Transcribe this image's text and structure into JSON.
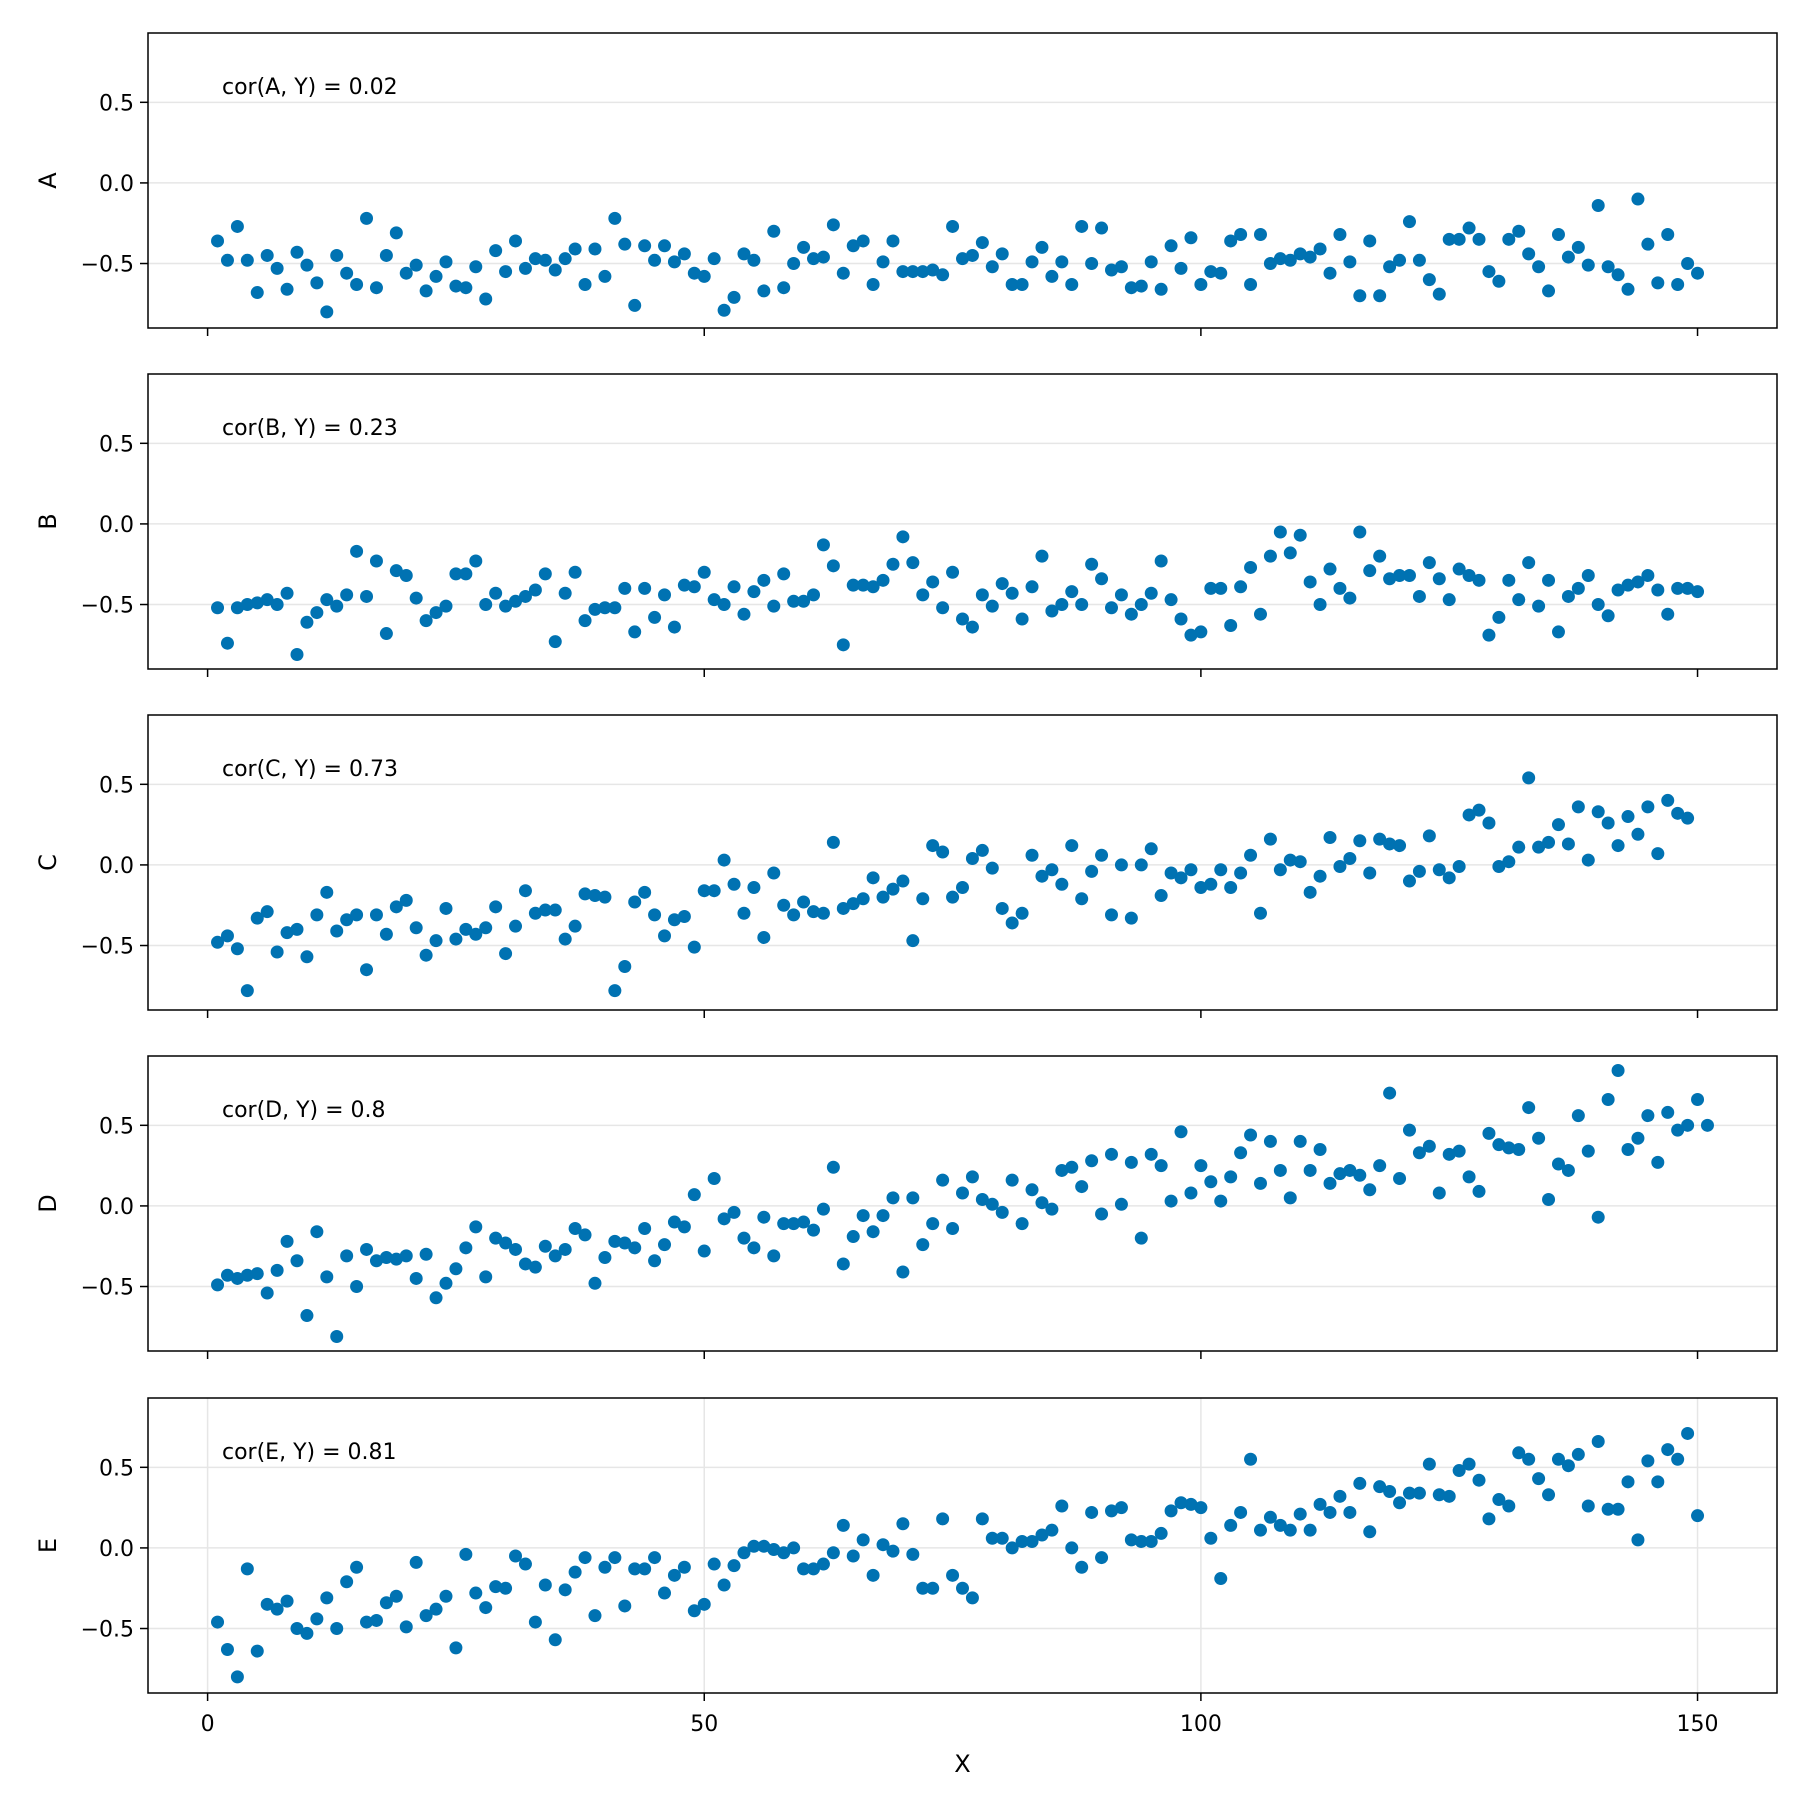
{
  "chart_data": {
    "type": "scatter",
    "layout": "stacked-panels",
    "xlabel": "X",
    "xlim": [
      -6,
      158
    ],
    "xticks": [
      0,
      50,
      100,
      150
    ],
    "xtick_labels": [
      "0",
      "50",
      "100",
      "150"
    ],
    "ylim": [
      -0.9,
      0.93
    ],
    "yticks": [
      -0.5,
      0.0,
      0.5
    ],
    "ytick_labels": [
      "−0.5",
      "0.0",
      "0.5"
    ],
    "grid": true,
    "marker_color": "#0072b2",
    "gridline_color": "#e6e6e6",
    "panels": [
      {
        "ylabel": "A",
        "annotation": "cor(A, Y) = 0.02",
        "x_start": 1,
        "y": [
          -0.36,
          -0.48,
          -0.27,
          -0.48,
          -0.68,
          -0.45,
          -0.53,
          -0.66,
          -0.43,
          -0.51,
          -0.62,
          -0.8,
          -0.45,
          -0.56,
          -0.63,
          -0.22,
          -0.65,
          -0.45,
          -0.31,
          -0.56,
          -0.51,
          -0.67,
          -0.58,
          -0.49,
          -0.64,
          -0.65,
          -0.52,
          -0.72,
          -0.42,
          -0.55,
          -0.36,
          -0.53,
          -0.47,
          -0.48,
          -0.54,
          -0.47,
          -0.41,
          -0.63,
          -0.41,
          -0.58,
          -0.22,
          -0.38,
          -0.76,
          -0.39,
          -0.48,
          -0.39,
          -0.49,
          -0.44,
          -0.56,
          -0.58,
          -0.47,
          -0.79,
          -0.71,
          -0.44,
          -0.48,
          -0.67,
          -0.3,
          -0.65,
          -0.5,
          -0.4,
          -0.47,
          -0.46,
          -0.26,
          -0.56,
          -0.39,
          -0.36,
          -0.63,
          -0.49,
          -0.36,
          -0.55,
          -0.55,
          -0.55,
          -0.54,
          -0.57,
          -0.27,
          -0.47,
          -0.45,
          -0.37,
          -0.52,
          -0.44,
          -0.63,
          -0.63,
          -0.49,
          -0.4,
          -0.58,
          -0.49,
          -0.63,
          -0.27,
          -0.5,
          -0.28,
          -0.54,
          -0.52,
          -0.65,
          -0.64,
          -0.49,
          -0.66,
          -0.39,
          -0.53,
          -0.34,
          -0.63,
          -0.55,
          -0.56,
          -0.36,
          -0.32,
          -0.63,
          -0.32,
          -0.5,
          -0.47,
          -0.48,
          -0.44,
          -0.46,
          -0.41,
          -0.56,
          -0.32,
          -0.49,
          -0.7,
          -0.36,
          -0.7,
          -0.52,
          -0.48,
          -0.24,
          -0.48,
          -0.6,
          -0.69,
          -0.35,
          -0.35,
          -0.28,
          -0.35,
          -0.55,
          -0.61,
          -0.35,
          -0.3,
          -0.44,
          -0.52,
          -0.67,
          -0.32,
          -0.46,
          -0.4,
          -0.51,
          -0.14,
          -0.52,
          -0.57,
          -0.66,
          -0.1,
          -0.38,
          -0.62,
          -0.32,
          -0.63,
          -0.5,
          -0.56
        ]
      },
      {
        "ylabel": "B",
        "annotation": "cor(B, Y) = 0.23",
        "x_start": 1,
        "y": [
          -0.52,
          -0.74,
          -0.52,
          -0.5,
          -0.49,
          -0.47,
          -0.5,
          -0.43,
          -0.81,
          -0.61,
          -0.55,
          -0.47,
          -0.51,
          -0.44,
          -0.17,
          -0.45,
          -0.23,
          -0.68,
          -0.29,
          -0.32,
          -0.46,
          -0.6,
          -0.55,
          -0.51,
          -0.31,
          -0.31,
          -0.23,
          -0.5,
          -0.43,
          -0.51,
          -0.48,
          -0.45,
          -0.41,
          -0.31,
          -0.73,
          -0.43,
          -0.3,
          -0.6,
          -0.53,
          -0.52,
          -0.52,
          -0.4,
          -0.67,
          -0.4,
          -0.58,
          -0.44,
          -0.64,
          -0.38,
          -0.39,
          -0.3,
          -0.47,
          -0.5,
          -0.39,
          -0.56,
          -0.42,
          -0.35,
          -0.51,
          -0.31,
          -0.48,
          -0.48,
          -0.44,
          -0.13,
          -0.26,
          -0.75,
          -0.38,
          -0.38,
          -0.39,
          -0.35,
          -0.25,
          -0.08,
          -0.24,
          -0.44,
          -0.36,
          -0.52,
          -0.3,
          -0.59,
          -0.64,
          -0.44,
          -0.51,
          -0.37,
          -0.43,
          -0.59,
          -0.39,
          -0.2,
          -0.54,
          -0.5,
          -0.42,
          -0.5,
          -0.25,
          -0.34,
          -0.52,
          -0.44,
          -0.56,
          -0.5,
          -0.43,
          -0.23,
          -0.47,
          -0.59,
          -0.69,
          -0.67,
          -0.4,
          -0.4,
          -0.63,
          -0.39,
          -0.27,
          -0.56,
          -0.2,
          -0.05,
          -0.18,
          -0.07,
          -0.36,
          -0.5,
          -0.28,
          -0.4,
          -0.46,
          -0.05,
          -0.29,
          -0.2,
          -0.34,
          -0.32,
          -0.32,
          -0.45,
          -0.24,
          -0.34,
          -0.47,
          -0.28,
          -0.32,
          -0.35,
          -0.69,
          -0.58,
          -0.35,
          -0.47,
          -0.24,
          -0.51,
          -0.35,
          -0.67,
          -0.45,
          -0.4,
          -0.32,
          -0.5,
          -0.57,
          -0.41,
          -0.38,
          -0.36,
          -0.32,
          -0.41,
          -0.56,
          -0.4,
          -0.4,
          -0.42
        ]
      },
      {
        "ylabel": "C",
        "annotation": "cor(C, Y) = 0.73",
        "x_start": 1,
        "y": [
          -0.48,
          -0.44,
          -0.52,
          -0.78,
          -0.33,
          -0.29,
          -0.54,
          -0.42,
          -0.4,
          -0.57,
          -0.31,
          -0.17,
          -0.41,
          -0.34,
          -0.31,
          -0.65,
          -0.31,
          -0.43,
          -0.26,
          -0.22,
          -0.39,
          -0.56,
          -0.47,
          -0.27,
          -0.46,
          -0.4,
          -0.43,
          -0.39,
          -0.26,
          -0.55,
          -0.38,
          -0.16,
          -0.3,
          -0.28,
          -0.28,
          -0.46,
          -0.38,
          -0.18,
          -0.19,
          -0.2,
          -0.78,
          -0.63,
          -0.23,
          -0.17,
          -0.31,
          -0.44,
          -0.34,
          -0.32,
          -0.51,
          -0.16,
          -0.16,
          0.03,
          -0.12,
          -0.3,
          -0.14,
          -0.45,
          -0.05,
          -0.25,
          -0.31,
          -0.23,
          -0.29,
          -0.3,
          0.14,
          -0.27,
          -0.24,
          -0.21,
          -0.08,
          -0.2,
          -0.15,
          -0.1,
          -0.47,
          -0.21,
          0.12,
          0.08,
          -0.2,
          -0.14,
          0.04,
          0.09,
          -0.02,
          -0.27,
          -0.36,
          -0.3,
          0.06,
          -0.07,
          -0.03,
          -0.12,
          0.12,
          -0.21,
          -0.04,
          0.06,
          -0.31,
          0.0,
          -0.33,
          0.0,
          0.1,
          -0.19,
          -0.05,
          -0.08,
          -0.03,
          -0.14,
          -0.12,
          -0.03,
          -0.14,
          -0.05,
          0.06,
          -0.3,
          0.16,
          -0.03,
          0.03,
          0.02,
          -0.17,
          -0.07,
          0.17,
          -0.01,
          0.04,
          0.15,
          -0.05,
          0.16,
          0.13,
          0.12,
          -0.1,
          -0.04,
          0.18,
          -0.03,
          -0.08,
          -0.01,
          0.31,
          0.34,
          0.26,
          -0.01,
          0.02,
          0.11,
          0.54,
          0.11,
          0.14,
          0.25,
          0.13,
          0.36,
          0.03,
          0.33,
          0.26,
          0.12,
          0.3,
          0.19,
          0.36,
          0.07,
          0.4,
          0.32,
          0.29
        ]
      },
      {
        "ylabel": "D",
        "annotation": "cor(D, Y) = 0.8",
        "x_start": 1,
        "y": [
          -0.49,
          -0.43,
          -0.45,
          -0.43,
          -0.42,
          -0.54,
          -0.4,
          -0.22,
          -0.34,
          -0.68,
          -0.16,
          -0.44,
          -0.81,
          -0.31,
          -0.5,
          -0.27,
          -0.34,
          -0.32,
          -0.33,
          -0.31,
          -0.45,
          -0.3,
          -0.57,
          -0.48,
          -0.39,
          -0.26,
          -0.13,
          -0.44,
          -0.2,
          -0.23,
          -0.27,
          -0.36,
          -0.38,
          -0.25,
          -0.31,
          -0.27,
          -0.14,
          -0.18,
          -0.48,
          -0.32,
          -0.22,
          -0.23,
          -0.26,
          -0.14,
          -0.34,
          -0.24,
          -0.1,
          -0.13,
          0.07,
          -0.28,
          0.17,
          -0.08,
          -0.04,
          -0.2,
          -0.26,
          -0.07,
          -0.31,
          -0.11,
          -0.11,
          -0.1,
          -0.15,
          -0.02,
          0.24,
          -0.36,
          -0.19,
          -0.06,
          -0.16,
          -0.06,
          0.05,
          -0.41,
          0.05,
          -0.24,
          -0.11,
          0.16,
          -0.14,
          0.08,
          0.18,
          0.04,
          0.01,
          -0.04,
          0.16,
          -0.11,
          0.1,
          0.02,
          -0.02,
          0.22,
          0.24,
          0.12,
          0.28,
          -0.05,
          0.32,
          0.01,
          0.27,
          -0.2,
          0.32,
          0.25,
          0.03,
          0.46,
          0.08,
          0.25,
          0.15,
          0.03,
          0.18,
          0.33,
          0.44,
          0.14,
          0.4,
          0.22,
          0.05,
          0.4,
          0.22,
          0.35,
          0.14,
          0.2,
          0.22,
          0.19,
          0.1,
          0.25,
          0.7,
          0.17,
          0.47,
          0.33,
          0.37,
          0.08,
          0.32,
          0.34,
          0.18,
          0.09,
          0.45,
          0.38,
          0.36,
          0.35,
          0.61,
          0.42,
          0.04,
          0.26,
          0.22,
          0.56,
          0.34,
          -0.07,
          0.66,
          0.84,
          0.35,
          0.42,
          0.56,
          0.27,
          0.58,
          0.47,
          0.5,
          0.66,
          0.5
        ]
      },
      {
        "ylabel": "E",
        "annotation": "cor(E, Y) = 0.81",
        "x_start": 1,
        "y": [
          -0.46,
          -0.63,
          -0.8,
          -0.13,
          -0.64,
          -0.35,
          -0.38,
          -0.33,
          -0.5,
          -0.53,
          -0.44,
          -0.31,
          -0.5,
          -0.21,
          -0.12,
          -0.46,
          -0.45,
          -0.34,
          -0.3,
          -0.49,
          -0.09,
          -0.42,
          -0.38,
          -0.3,
          -0.62,
          -0.04,
          -0.28,
          -0.37,
          -0.24,
          -0.25,
          -0.05,
          -0.1,
          -0.46,
          -0.23,
          -0.57,
          -0.26,
          -0.15,
          -0.06,
          -0.42,
          -0.12,
          -0.06,
          -0.36,
          -0.13,
          -0.13,
          -0.06,
          -0.28,
          -0.17,
          -0.12,
          -0.39,
          -0.35,
          -0.1,
          -0.23,
          -0.11,
          -0.03,
          0.01,
          0.01,
          -0.01,
          -0.03,
          0.0,
          -0.13,
          -0.13,
          -0.1,
          -0.03,
          0.14,
          -0.05,
          0.05,
          -0.17,
          0.02,
          -0.02,
          0.15,
          -0.04,
          -0.25,
          -0.25,
          0.18,
          -0.17,
          -0.25,
          -0.31,
          0.18,
          0.06,
          0.06,
          0.0,
          0.04,
          0.04,
          0.08,
          0.11,
          0.26,
          0.0,
          -0.12,
          0.22,
          -0.06,
          0.23,
          0.25,
          0.05,
          0.04,
          0.04,
          0.09,
          0.23,
          0.28,
          0.27,
          0.25,
          0.06,
          -0.19,
          0.14,
          0.22,
          0.55,
          0.11,
          0.19,
          0.14,
          0.11,
          0.21,
          0.11,
          0.27,
          0.22,
          0.32,
          0.22,
          0.4,
          0.1,
          0.38,
          0.35,
          0.28,
          0.34,
          0.34,
          0.52,
          0.33,
          0.32,
          0.48,
          0.52,
          0.42,
          0.18,
          0.3,
          0.26,
          0.59,
          0.55,
          0.43,
          0.33,
          0.55,
          0.51,
          0.58,
          0.26,
          0.66,
          0.24,
          0.24,
          0.41,
          0.05,
          0.54,
          0.41,
          0.61,
          0.55,
          0.71,
          0.2
        ]
      }
    ]
  }
}
